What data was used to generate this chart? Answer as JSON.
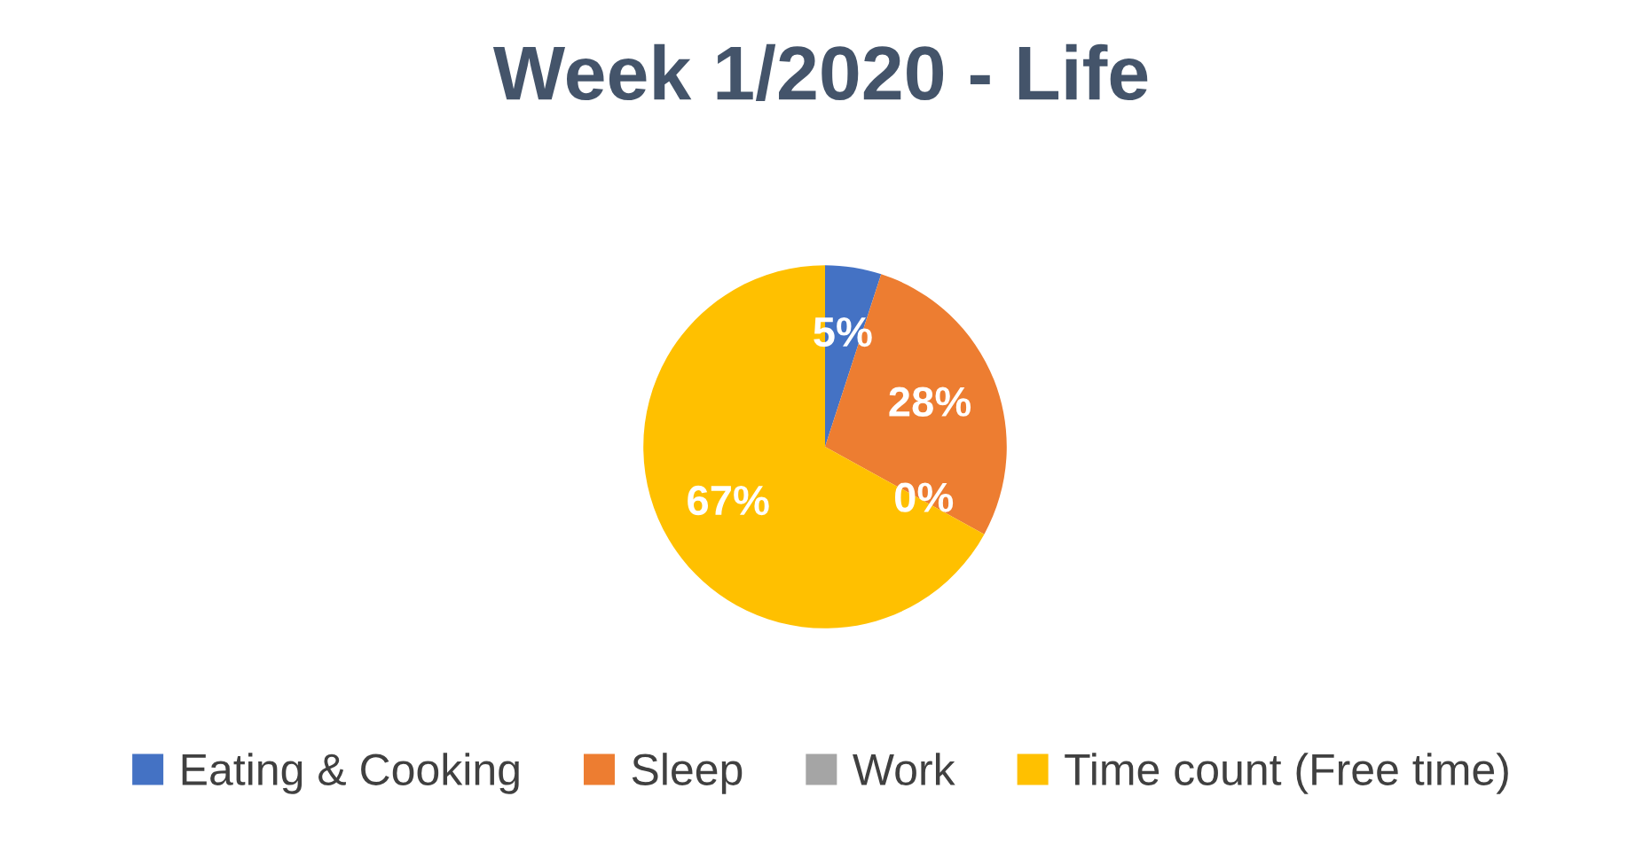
{
  "chart_data": {
    "type": "pie",
    "title": "Week 1/2020 - Life",
    "categories": [
      "Eating & Cooking",
      "Sleep",
      "Work",
      "Time count (Free time)"
    ],
    "values": [
      5,
      28,
      0,
      67
    ],
    "colors": [
      "#4472c4",
      "#ed7d31",
      "#a5a5a5",
      "#ffc000"
    ],
    "value_labels": [
      "5%",
      "28%",
      "0%",
      "67%"
    ],
    "legend": "bottom"
  }
}
